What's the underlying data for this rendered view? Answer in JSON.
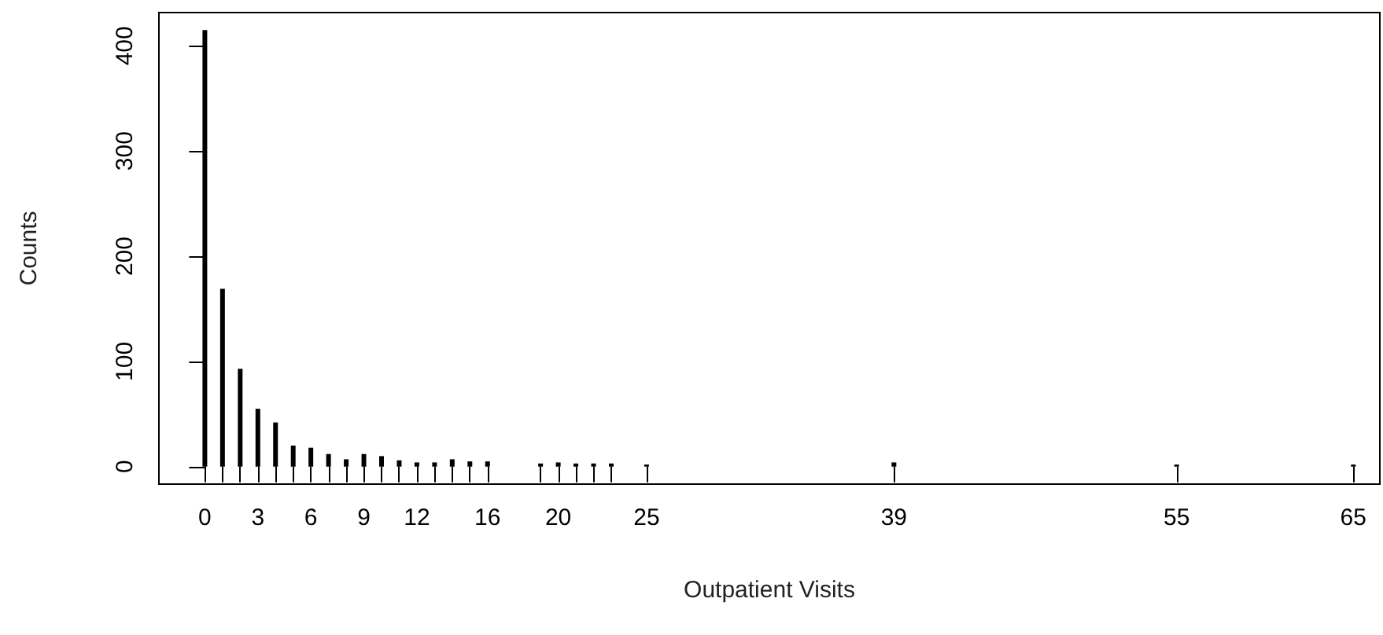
{
  "chart_data": {
    "type": "bar",
    "xlabel": "Outpatient Visits",
    "ylabel": "Counts",
    "x": [
      0,
      1,
      2,
      3,
      4,
      5,
      6,
      7,
      8,
      9,
      10,
      11,
      12,
      13,
      14,
      15,
      16,
      19,
      20,
      21,
      22,
      23,
      25,
      39,
      55,
      65
    ],
    "series": [
      {
        "color": "#000000",
        "values": [
          415,
          169,
          93,
          55,
          42,
          20,
          18,
          12,
          7,
          12,
          10,
          6,
          4,
          4,
          7,
          5,
          5,
          3,
          4,
          3,
          3,
          3,
          2,
          4,
          2,
          2
        ]
      }
    ],
    "xlim": [
      -2.6,
      66.5
    ],
    "ylim": [
      -16.6,
      431.6
    ],
    "xticks": [
      0,
      {
        "value": 1,
        "label": null
      },
      {
        "value": 2,
        "label": null
      },
      3,
      {
        "value": 4,
        "label": null
      },
      {
        "value": 5,
        "label": null
      },
      6,
      {
        "value": 7,
        "label": null
      },
      {
        "value": 8,
        "label": null
      },
      9,
      {
        "value": 10,
        "label": null
      },
      {
        "value": 11,
        "label": null
      },
      12,
      {
        "value": 13,
        "label": null
      },
      {
        "value": 14,
        "label": null
      },
      {
        "value": 15,
        "label": null
      },
      16,
      {
        "value": 19,
        "label": null
      },
      20,
      {
        "value": 21,
        "label": null
      },
      {
        "value": 22,
        "label": null
      },
      {
        "value": 23,
        "label": null
      },
      25,
      39,
      55,
      65
    ],
    "yticks": [
      0,
      100,
      200,
      300,
      400
    ]
  }
}
